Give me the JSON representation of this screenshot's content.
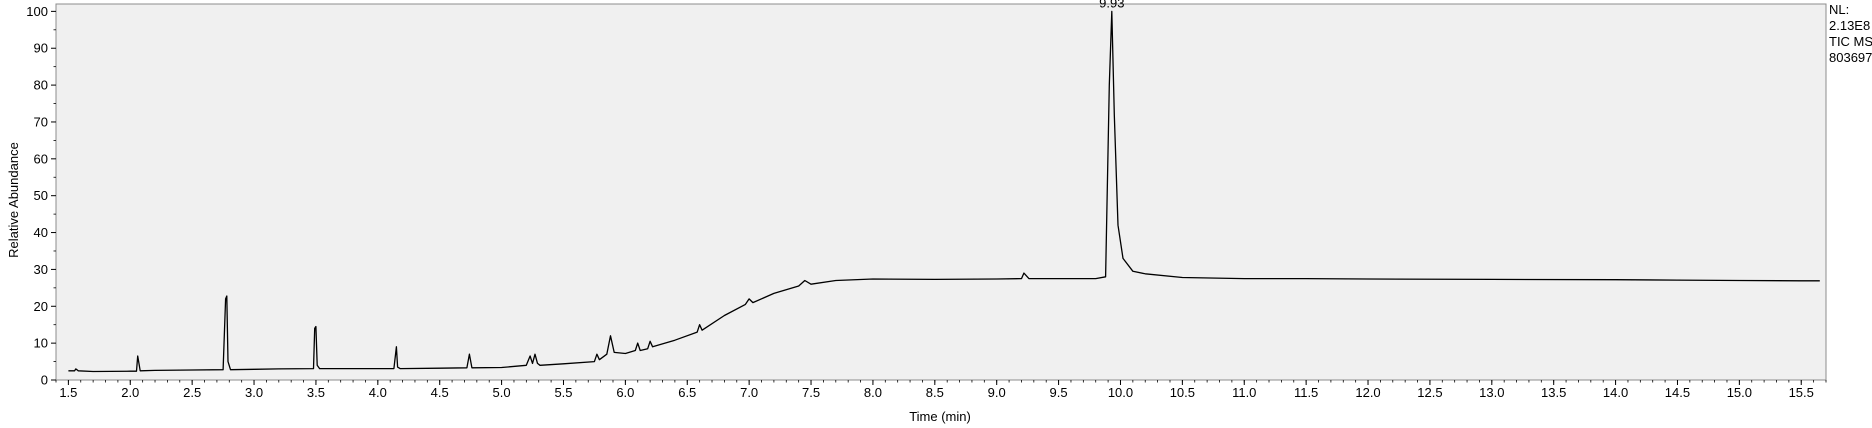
{
  "info": {
    "nl_label": "NL:",
    "nl_value": "2.13E8",
    "trace": "TIC  MS",
    "file": "803697"
  },
  "chart_data": {
    "type": "line",
    "title": "",
    "xlabel": "Time (min)",
    "ylabel": "Relative Abundance",
    "xlim": [
      1.4,
      15.7
    ],
    "ylim": [
      0,
      102
    ],
    "xticks": [
      1.5,
      2.0,
      2.5,
      3.0,
      3.5,
      4.0,
      4.5,
      5.0,
      5.5,
      6.0,
      6.5,
      7.0,
      7.5,
      8.0,
      8.5,
      9.0,
      9.5,
      10.0,
      10.5,
      11.0,
      11.5,
      12.0,
      12.5,
      13.0,
      13.5,
      14.0,
      14.5,
      15.0,
      15.5
    ],
    "xtick_labels": [
      "1.5",
      "2.0",
      "2.5",
      "3.0",
      "3.5",
      "4.0",
      "4.5",
      "5.0",
      "5.5",
      "6.0",
      "6.5",
      "7.0",
      "7.5",
      "8.0",
      "8.5",
      "9.0",
      "9.5",
      "10.0",
      "10.5",
      "11.0",
      "11.5",
      "12.0",
      "12.5",
      "13.0",
      "13.5",
      "14.0",
      "14.5",
      "15.0",
      "15.5"
    ],
    "yticks": [
      0,
      10,
      20,
      30,
      40,
      50,
      60,
      70,
      80,
      90,
      100
    ],
    "ytick_labels": [
      "0",
      "10",
      "20",
      "30",
      "40",
      "50",
      "60",
      "70",
      "80",
      "90",
      "100"
    ],
    "grid": false,
    "annotations": [
      {
        "x": 9.93,
        "y": 100,
        "text": "9.93"
      }
    ],
    "series": [
      {
        "x": [
          1.5,
          1.55,
          1.56,
          1.58,
          1.7,
          2.0,
          2.05,
          2.06,
          2.08,
          2.2,
          2.5,
          2.75,
          2.77,
          2.78,
          2.79,
          2.81,
          3.0,
          3.2,
          3.48,
          3.49,
          3.5,
          3.51,
          3.53,
          3.8,
          4.13,
          4.15,
          4.16,
          4.18,
          4.5,
          4.72,
          4.74,
          4.76,
          5.0,
          5.2,
          5.23,
          5.25,
          5.27,
          5.29,
          5.31,
          5.5,
          5.75,
          5.77,
          5.79,
          5.85,
          5.88,
          5.91,
          6.0,
          6.08,
          6.1,
          6.12,
          6.18,
          6.2,
          6.22,
          6.4,
          6.58,
          6.6,
          6.62,
          6.8,
          6.97,
          7.0,
          7.03,
          7.2,
          7.4,
          7.45,
          7.5,
          7.7,
          8.0,
          8.5,
          9.0,
          9.2,
          9.22,
          9.26,
          9.5,
          9.8,
          9.88,
          9.91,
          9.93,
          9.95,
          9.98,
          10.02,
          10.1,
          10.2,
          10.5,
          11.0,
          11.5,
          12.0,
          13.0,
          14.0,
          14.5,
          15.0,
          15.5,
          15.65
        ],
        "y": [
          2.5,
          2.5,
          3.0,
          2.5,
          2.3,
          2.4,
          2.4,
          6.5,
          2.5,
          2.6,
          2.7,
          2.8,
          22.0,
          22.8,
          5.0,
          2.8,
          2.9,
          3.0,
          3.1,
          14.0,
          14.5,
          4.0,
          3.1,
          3.1,
          3.1,
          9.0,
          3.5,
          3.1,
          3.2,
          3.3,
          7.0,
          3.3,
          3.4,
          4.0,
          6.5,
          4.5,
          7.0,
          4.5,
          4.0,
          4.4,
          5.0,
          7.0,
          5.5,
          7.0,
          12.0,
          7.5,
          7.2,
          8.0,
          10.0,
          8.0,
          8.5,
          10.5,
          9.0,
          10.8,
          13.0,
          15.0,
          13.5,
          17.5,
          20.5,
          22.0,
          21.0,
          23.5,
          25.5,
          27.0,
          26.0,
          27.0,
          27.4,
          27.3,
          27.4,
          27.5,
          29.0,
          27.5,
          27.5,
          27.5,
          28.0,
          80.0,
          100.0,
          72.0,
          42.0,
          33.0,
          29.5,
          28.8,
          27.8,
          27.5,
          27.5,
          27.4,
          27.3,
          27.2,
          27.1,
          27.0,
          26.9,
          26.9
        ]
      }
    ]
  }
}
